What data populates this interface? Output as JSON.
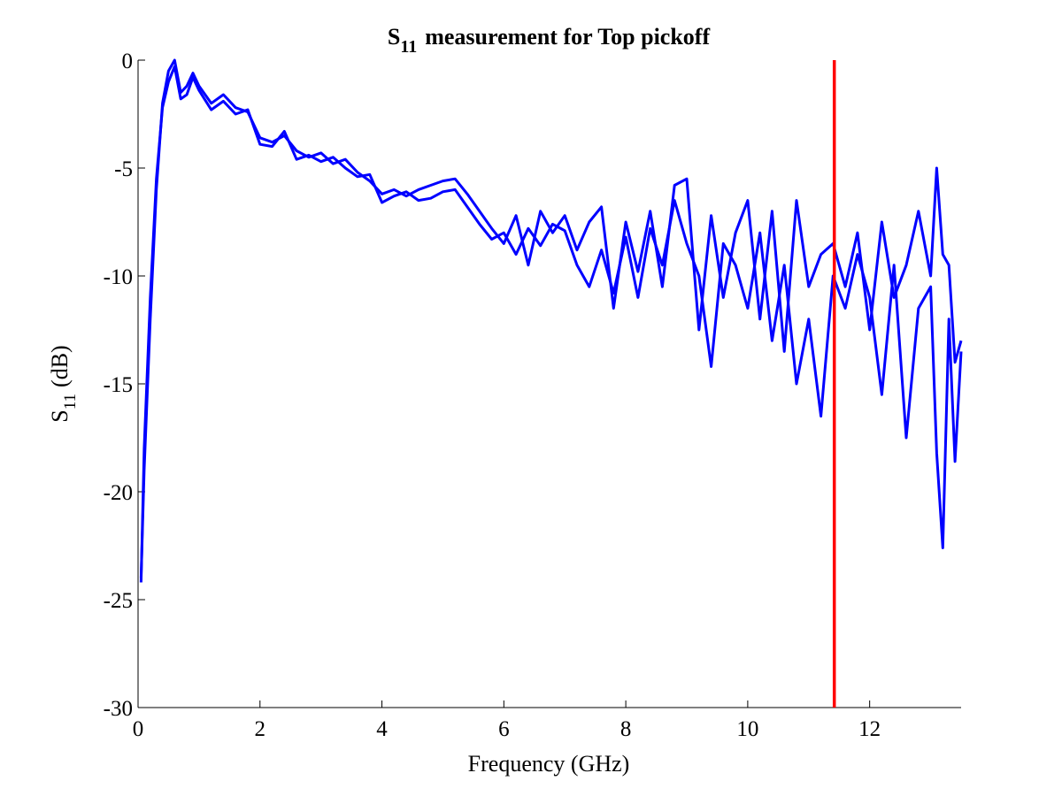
{
  "chart_data": {
    "type": "line",
    "title": {
      "main": "S",
      "sub": "11",
      "rest": "measurement for Top pickoff"
    },
    "xlabel": "Frequency (GHz)",
    "ylabel": {
      "main": "S",
      "sub": "11",
      "rest": "(dB)"
    },
    "x": [
      0.05,
      0.1,
      0.2,
      0.3,
      0.4,
      0.5,
      0.6,
      0.7,
      0.8,
      0.9,
      1.0,
      1.2,
      1.4,
      1.6,
      1.8,
      2.0,
      2.2,
      2.4,
      2.6,
      2.8,
      3.0,
      3.2,
      3.4,
      3.6,
      3.8,
      4.0,
      4.2,
      4.4,
      4.6,
      4.8,
      5.0,
      5.2,
      5.4,
      5.6,
      5.8,
      6.0,
      6.2,
      6.4,
      6.6,
      6.8,
      7.0,
      7.2,
      7.4,
      7.6,
      7.8,
      8.0,
      8.2,
      8.4,
      8.6,
      8.8,
      9.0,
      9.2,
      9.4,
      9.6,
      9.8,
      10.0,
      10.2,
      10.4,
      10.6,
      10.8,
      11.0,
      11.2,
      11.4,
      11.6,
      11.8,
      12.0,
      12.2,
      12.4,
      12.6,
      12.8,
      13.0,
      13.1,
      13.2,
      13.3,
      13.4,
      13.5
    ],
    "series": [
      {
        "color": "#0000ff",
        "values": [
          -24,
          -19,
          -12,
          -6,
          -2,
          -0.5,
          0,
          -1.5,
          -1.2,
          -0.6,
          -1.2,
          -2,
          -1.6,
          -2.2,
          -2.4,
          -3.6,
          -3.8,
          -3.5,
          -4.2,
          -4.5,
          -4.3,
          -4.8,
          -4.6,
          -5.2,
          -5.6,
          -6.2,
          -6.0,
          -6.3,
          -6.0,
          -5.8,
          -5.6,
          -5.5,
          -6.2,
          -7.0,
          -7.8,
          -8.5,
          -7.2,
          -9.5,
          -7.0,
          -8.0,
          -7.2,
          -8.8,
          -7.5,
          -6.8,
          -11.5,
          -7.5,
          -9.8,
          -7.0,
          -10.5,
          -5.8,
          -5.5,
          -12.5,
          -7.2,
          -11.0,
          -8.0,
          -6.5,
          -12.0,
          -7.0,
          -13.5,
          -6.5,
          -10.5,
          -9.0,
          -8.5,
          -10.5,
          -8.0,
          -12.5,
          -7.5,
          -11.0,
          -9.5,
          -7.0,
          -10.0,
          -5.0,
          -9.0,
          -9.5,
          -14.0,
          -13.0
        ]
      },
      {
        "color": "#0000ff",
        "values": [
          -24.2,
          -18,
          -11,
          -5.5,
          -2.2,
          -1,
          -0.3,
          -1.8,
          -1.6,
          -0.8,
          -1.4,
          -2.3,
          -1.9,
          -2.5,
          -2.3,
          -3.9,
          -4.0,
          -3.3,
          -4.6,
          -4.4,
          -4.7,
          -4.5,
          -5.0,
          -5.4,
          -5.3,
          -6.6,
          -6.3,
          -6.1,
          -6.5,
          -6.4,
          -6.1,
          -6.0,
          -6.8,
          -7.6,
          -8.3,
          -8.0,
          -9.0,
          -7.8,
          -8.6,
          -7.6,
          -7.9,
          -9.5,
          -10.5,
          -8.8,
          -10.8,
          -8.2,
          -11.0,
          -7.8,
          -9.5,
          -6.5,
          -8.5,
          -10.0,
          -14.2,
          -8.5,
          -9.5,
          -11.5,
          -8.0,
          -13.0,
          -9.5,
          -15.0,
          -12.0,
          -16.5,
          -10.0,
          -11.5,
          -9.0,
          -11.0,
          -15.5,
          -9.5,
          -17.5,
          -11.5,
          -10.5,
          -18.2,
          -22.6,
          -12.0,
          -18.6,
          -13.5
        ]
      }
    ],
    "vline": {
      "x": 11.42,
      "color": "#ff0000"
    },
    "xlim": [
      0,
      13.5
    ],
    "xticks": [
      0,
      2,
      4,
      6,
      8,
      10,
      12
    ],
    "ylim": [
      -30,
      0
    ],
    "yticks": [
      -30,
      -25,
      -20,
      -15,
      -10,
      -5,
      0
    ]
  }
}
